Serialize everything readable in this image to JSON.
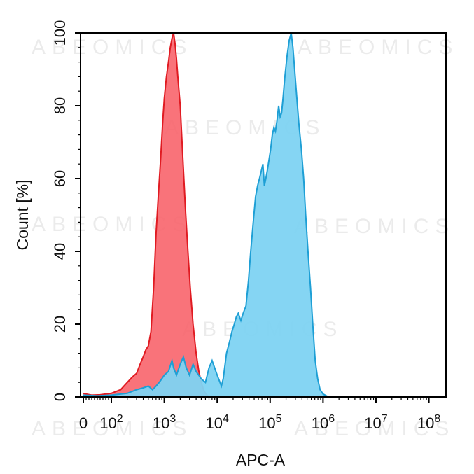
{
  "chart_data": {
    "type": "area",
    "title": "",
    "xlabel": "APC-A",
    "ylabel": "Count [%]",
    "x_scale": "log",
    "x_tick_labels": [
      {
        "value": 0,
        "base": "0",
        "exp": ""
      },
      {
        "value": 100,
        "base": "10",
        "exp": "2"
      },
      {
        "value": 1000,
        "base": "10",
        "exp": "3"
      },
      {
        "value": 10000,
        "base": "10",
        "exp": "4"
      },
      {
        "value": 100000,
        "base": "10",
        "exp": "5"
      },
      {
        "value": 1000000,
        "base": "10",
        "exp": "6"
      },
      {
        "value": 10000000,
        "base": "10",
        "exp": "7"
      },
      {
        "value": 100000000,
        "base": "10",
        "exp": "8"
      }
    ],
    "y_ticks": [
      0,
      20,
      40,
      60,
      80,
      100
    ],
    "ylim": [
      0,
      100
    ],
    "grid": false,
    "legend": "none",
    "watermark": "ABEOMICS",
    "series": [
      {
        "color": "#e01b22",
        "fill": "#f8646b",
        "points": [
          [
            0,
            1
          ],
          [
            10,
            0.8
          ],
          [
            30,
            0.5
          ],
          [
            60,
            0.6
          ],
          [
            100,
            1
          ],
          [
            150,
            2
          ],
          [
            200,
            4
          ],
          [
            250,
            5.5
          ],
          [
            300,
            6.5
          ],
          [
            350,
            9
          ],
          [
            400,
            11
          ],
          [
            450,
            13
          ],
          [
            500,
            14
          ],
          [
            560,
            18
          ],
          [
            630,
            30
          ],
          [
            700,
            45
          ],
          [
            770,
            55
          ],
          [
            850,
            65
          ],
          [
            930,
            75
          ],
          [
            1000,
            82
          ],
          [
            1100,
            88
          ],
          [
            1200,
            92
          ],
          [
            1300,
            96
          ],
          [
            1400,
            98.5
          ],
          [
            1500,
            100
          ],
          [
            1600,
            97
          ],
          [
            1700,
            93
          ],
          [
            1800,
            88
          ],
          [
            2000,
            80
          ],
          [
            2200,
            68
          ],
          [
            2500,
            52
          ],
          [
            2800,
            40
          ],
          [
            3100,
            30
          ],
          [
            3500,
            20
          ],
          [
            4000,
            12
          ],
          [
            4500,
            7
          ],
          [
            5000,
            4
          ],
          [
            5500,
            2
          ],
          [
            6000,
            1
          ],
          [
            7000,
            0
          ]
        ]
      },
      {
        "color": "#1e9fd5",
        "fill": "#7ed3f2",
        "points": [
          [
            0,
            0.5
          ],
          [
            50,
            0.3
          ],
          [
            100,
            0.5
          ],
          [
            200,
            1
          ],
          [
            300,
            2
          ],
          [
            400,
            2.5
          ],
          [
            500,
            3
          ],
          [
            600,
            2
          ],
          [
            700,
            3
          ],
          [
            800,
            4
          ],
          [
            900,
            5
          ],
          [
            1000,
            6
          ],
          [
            1200,
            7
          ],
          [
            1400,
            10
          ],
          [
            1500,
            8
          ],
          [
            1700,
            6
          ],
          [
            2000,
            9
          ],
          [
            2300,
            11
          ],
          [
            2600,
            8
          ],
          [
            3000,
            6
          ],
          [
            3500,
            9
          ],
          [
            4000,
            7
          ],
          [
            5000,
            5
          ],
          [
            6000,
            4
          ],
          [
            7000,
            8
          ],
          [
            8000,
            10
          ],
          [
            10000,
            6
          ],
          [
            12000,
            3
          ],
          [
            13000,
            5
          ],
          [
            15000,
            12
          ],
          [
            17000,
            15
          ],
          [
            19000,
            18
          ],
          [
            21000,
            20
          ],
          [
            23000,
            22
          ],
          [
            25000,
            23
          ],
          [
            28000,
            21
          ],
          [
            31000,
            23
          ],
          [
            35000,
            25
          ],
          [
            39000,
            32
          ],
          [
            43000,
            40
          ],
          [
            48000,
            48
          ],
          [
            53000,
            55
          ],
          [
            58000,
            58
          ],
          [
            63000,
            60
          ],
          [
            68000,
            62
          ],
          [
            73000,
            64
          ],
          [
            78000,
            58
          ],
          [
            83000,
            60
          ],
          [
            88000,
            62
          ],
          [
            95000,
            65
          ],
          [
            102000,
            68
          ],
          [
            110000,
            72
          ],
          [
            118000,
            74
          ],
          [
            126000,
            73
          ],
          [
            135000,
            76
          ],
          [
            145000,
            80
          ],
          [
            155000,
            77
          ],
          [
            165000,
            78
          ],
          [
            175000,
            82
          ],
          [
            190000,
            88
          ],
          [
            210000,
            94
          ],
          [
            230000,
            98
          ],
          [
            250000,
            100
          ],
          [
            270000,
            96
          ],
          [
            290000,
            90
          ],
          [
            320000,
            82
          ],
          [
            350000,
            75
          ],
          [
            390000,
            68
          ],
          [
            430000,
            60
          ],
          [
            470000,
            50
          ],
          [
            520000,
            40
          ],
          [
            580000,
            30
          ],
          [
            640000,
            20
          ],
          [
            710000,
            10
          ],
          [
            790000,
            5
          ],
          [
            880000,
            2
          ],
          [
            1000000,
            0.8
          ],
          [
            1200000,
            0.2
          ],
          [
            1500000,
            0
          ]
        ]
      }
    ]
  }
}
